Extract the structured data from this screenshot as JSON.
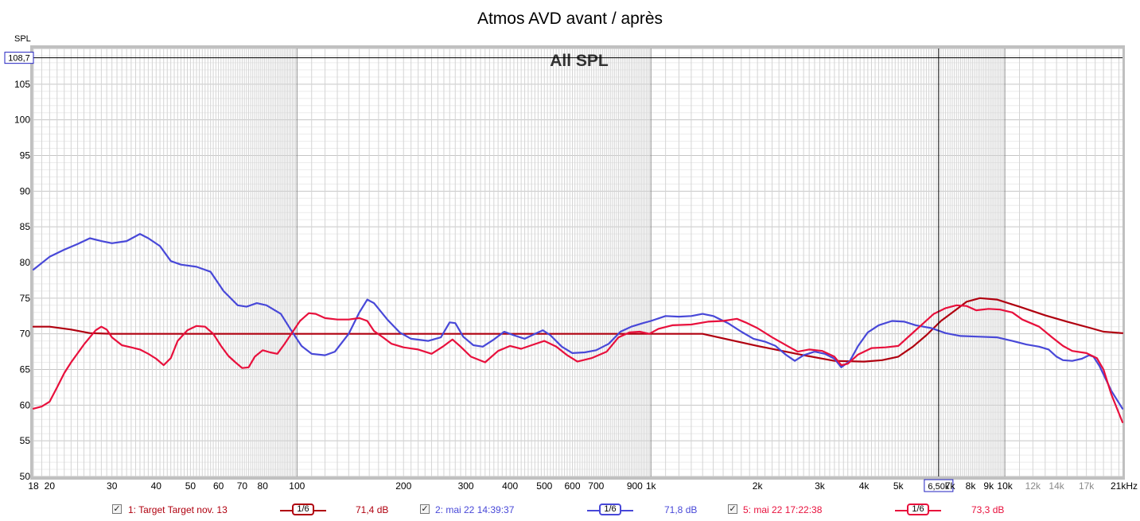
{
  "chart_data": {
    "type": "line",
    "title": "Atmos AVD avant / après",
    "watermark": "All SPL",
    "ylabel": "SPL",
    "xscale": "log",
    "xlim": [
      18,
      21500
    ],
    "ylim": [
      50,
      110
    ],
    "grid": true,
    "y_ticks": [
      50,
      55,
      60,
      65,
      70,
      75,
      80,
      85,
      90,
      95,
      100,
      105
    ],
    "x_tick_labels": [
      {
        "f": 18,
        "label": "18"
      },
      {
        "f": 20,
        "label": "20"
      },
      {
        "f": 30,
        "label": "30"
      },
      {
        "f": 40,
        "label": "40"
      },
      {
        "f": 50,
        "label": "50"
      },
      {
        "f": 60,
        "label": "60"
      },
      {
        "f": 70,
        "label": "70"
      },
      {
        "f": 80,
        "label": "80"
      },
      {
        "f": 100,
        "label": "100"
      },
      {
        "f": 200,
        "label": "200"
      },
      {
        "f": 300,
        "label": "300"
      },
      {
        "f": 400,
        "label": "400"
      },
      {
        "f": 500,
        "label": "500"
      },
      {
        "f": 600,
        "label": "600"
      },
      {
        "f": 700,
        "label": "700"
      },
      {
        "f": 900,
        "label": "900"
      },
      {
        "f": 1000,
        "label": "1k"
      },
      {
        "f": 2000,
        "label": "2k"
      },
      {
        "f": 3000,
        "label": "3k"
      },
      {
        "f": 4000,
        "label": "4k"
      },
      {
        "f": 5000,
        "label": "5k"
      },
      {
        "f": 7000,
        "label": "7k"
      },
      {
        "f": 8000,
        "label": "8k"
      },
      {
        "f": 9000,
        "label": "9k"
      },
      {
        "f": 10000,
        "label": "10k"
      },
      {
        "f": 12000,
        "label": "12k",
        "grey": true
      },
      {
        "f": 14000,
        "label": "14k",
        "grey": true
      },
      {
        "f": 17000,
        "label": "17k",
        "grey": true
      },
      {
        "f": 21000,
        "label": "21kHz"
      }
    ],
    "cursor": {
      "x": 6500,
      "x_label": "6,50k",
      "y": 108.7,
      "y_label": "108,7"
    },
    "series": [
      {
        "name": "1: Target Target nov. 13",
        "color": "#b0000f",
        "smoothing": "1/6",
        "level": "71,4 dB",
        "points": [
          [
            18,
            71
          ],
          [
            20,
            71
          ],
          [
            23,
            70.6
          ],
          [
            26,
            70.1
          ],
          [
            30,
            70
          ],
          [
            100,
            70
          ],
          [
            1000,
            70
          ],
          [
            1400,
            70
          ],
          [
            2000,
            68.3
          ],
          [
            2700,
            67
          ],
          [
            3300,
            66.2
          ],
          [
            4000,
            66.1
          ],
          [
            4500,
            66.3
          ],
          [
            5000,
            66.8
          ],
          [
            5500,
            68.2
          ],
          [
            6000,
            69.8
          ],
          [
            6600,
            71.8
          ],
          [
            7200,
            73.2
          ],
          [
            7800,
            74.5
          ],
          [
            8500,
            75
          ],
          [
            9500,
            74.8
          ],
          [
            11000,
            73.8
          ],
          [
            13000,
            72.6
          ],
          [
            15000,
            71.7
          ],
          [
            17500,
            70.8
          ],
          [
            19000,
            70.3
          ],
          [
            21500,
            70.1
          ]
        ]
      },
      {
        "name": "2: mai 22 14:39:37",
        "color": "#4848d8",
        "smoothing": "1/6",
        "level": "71,8 dB",
        "points": [
          [
            18,
            79
          ],
          [
            20,
            80.8
          ],
          [
            22,
            81.8
          ],
          [
            24,
            82.6
          ],
          [
            26,
            83.4
          ],
          [
            28,
            83
          ],
          [
            30,
            82.7
          ],
          [
            33,
            83
          ],
          [
            36,
            84
          ],
          [
            38,
            83.4
          ],
          [
            41,
            82.3
          ],
          [
            44,
            80.2
          ],
          [
            47,
            79.7
          ],
          [
            52,
            79.4
          ],
          [
            57,
            78.7
          ],
          [
            62,
            76
          ],
          [
            68,
            74
          ],
          [
            72,
            73.8
          ],
          [
            77,
            74.3
          ],
          [
            82,
            74
          ],
          [
            90,
            72.8
          ],
          [
            96,
            70.6
          ],
          [
            103,
            68.3
          ],
          [
            110,
            67.2
          ],
          [
            120,
            67
          ],
          [
            128,
            67.5
          ],
          [
            140,
            70
          ],
          [
            150,
            73
          ],
          [
            158,
            74.8
          ],
          [
            165,
            74.3
          ],
          [
            180,
            72
          ],
          [
            195,
            70.2
          ],
          [
            210,
            69.3
          ],
          [
            235,
            69
          ],
          [
            255,
            69.5
          ],
          [
            270,
            71.6
          ],
          [
            280,
            71.5
          ],
          [
            295,
            69.6
          ],
          [
            315,
            68.4
          ],
          [
            335,
            68.2
          ],
          [
            360,
            69.2
          ],
          [
            385,
            70.3
          ],
          [
            410,
            69.8
          ],
          [
            440,
            69.3
          ],
          [
            470,
            70
          ],
          [
            495,
            70.5
          ],
          [
            520,
            69.8
          ],
          [
            560,
            68.2
          ],
          [
            600,
            67.3
          ],
          [
            650,
            67.4
          ],
          [
            700,
            67.7
          ],
          [
            760,
            68.6
          ],
          [
            820,
            70.3
          ],
          [
            880,
            71
          ],
          [
            950,
            71.5
          ],
          [
            1000,
            71.8
          ],
          [
            1100,
            72.5
          ],
          [
            1200,
            72.4
          ],
          [
            1300,
            72.5
          ],
          [
            1400,
            72.8
          ],
          [
            1500,
            72.5
          ],
          [
            1650,
            71.5
          ],
          [
            1800,
            70.3
          ],
          [
            1950,
            69.3
          ],
          [
            2100,
            68.9
          ],
          [
            2250,
            68.3
          ],
          [
            2400,
            67.1
          ],
          [
            2550,
            66.2
          ],
          [
            2700,
            67
          ],
          [
            2900,
            67.5
          ],
          [
            3100,
            67.2
          ],
          [
            3300,
            66.5
          ],
          [
            3450,
            65.3
          ],
          [
            3650,
            66.2
          ],
          [
            3850,
            68.3
          ],
          [
            4100,
            70.2
          ],
          [
            4400,
            71.2
          ],
          [
            4800,
            71.8
          ],
          [
            5200,
            71.7
          ],
          [
            5600,
            71.2
          ],
          [
            6200,
            70.8
          ],
          [
            6800,
            70.1
          ],
          [
            7500,
            69.7
          ],
          [
            8500,
            69.6
          ],
          [
            9500,
            69.5
          ],
          [
            10500,
            69
          ],
          [
            11500,
            68.5
          ],
          [
            12500,
            68.2
          ],
          [
            13300,
            67.8
          ],
          [
            14000,
            66.8
          ],
          [
            14600,
            66.3
          ],
          [
            15500,
            66.2
          ],
          [
            16500,
            66.5
          ],
          [
            17300,
            67
          ],
          [
            17800,
            66.8
          ],
          [
            18500,
            65.5
          ],
          [
            20000,
            62
          ],
          [
            21500,
            59.5
          ]
        ]
      },
      {
        "name": "5: mai 22 17:22:38",
        "color": "#e8103c",
        "smoothing": "1/6",
        "level": "73,3 dB",
        "points": [
          [
            18,
            59.5
          ],
          [
            19,
            59.8
          ],
          [
            20,
            60.5
          ],
          [
            21,
            62.5
          ],
          [
            22,
            64.5
          ],
          [
            23,
            66
          ],
          [
            25,
            68.5
          ],
          [
            27,
            70.5
          ],
          [
            28,
            71
          ],
          [
            29,
            70.6
          ],
          [
            30,
            69.5
          ],
          [
            32,
            68.4
          ],
          [
            34,
            68.1
          ],
          [
            36,
            67.8
          ],
          [
            38,
            67.2
          ],
          [
            40,
            66.5
          ],
          [
            42,
            65.6
          ],
          [
            44,
            66.6
          ],
          [
            46,
            69
          ],
          [
            49,
            70.5
          ],
          [
            52,
            71.1
          ],
          [
            55,
            71
          ],
          [
            58,
            70
          ],
          [
            61,
            68.3
          ],
          [
            64,
            66.9
          ],
          [
            67,
            66
          ],
          [
            70,
            65.2
          ],
          [
            73,
            65.3
          ],
          [
            76,
            66.8
          ],
          [
            80,
            67.7
          ],
          [
            84,
            67.4
          ],
          [
            88,
            67.2
          ],
          [
            92,
            68.5
          ],
          [
            97,
            70.2
          ],
          [
            102,
            71.8
          ],
          [
            108,
            72.9
          ],
          [
            113,
            72.8
          ],
          [
            120,
            72.2
          ],
          [
            130,
            72
          ],
          [
            140,
            72
          ],
          [
            150,
            72.2
          ],
          [
            158,
            71.8
          ],
          [
            165,
            70.4
          ],
          [
            175,
            69.5
          ],
          [
            185,
            68.6
          ],
          [
            200,
            68.1
          ],
          [
            220,
            67.8
          ],
          [
            240,
            67.2
          ],
          [
            260,
            68.3
          ],
          [
            275,
            69.2
          ],
          [
            290,
            68.2
          ],
          [
            310,
            66.8
          ],
          [
            340,
            66
          ],
          [
            370,
            67.6
          ],
          [
            400,
            68.3
          ],
          [
            430,
            67.9
          ],
          [
            460,
            68.4
          ],
          [
            500,
            69
          ],
          [
            540,
            68.2
          ],
          [
            580,
            67
          ],
          [
            620,
            66.1
          ],
          [
            680,
            66.6
          ],
          [
            750,
            67.5
          ],
          [
            810,
            69.5
          ],
          [
            870,
            70.2
          ],
          [
            930,
            70.3
          ],
          [
            990,
            70
          ],
          [
            1050,
            70.7
          ],
          [
            1150,
            71.2
          ],
          [
            1300,
            71.3
          ],
          [
            1450,
            71.7
          ],
          [
            1600,
            71.8
          ],
          [
            1750,
            72.1
          ],
          [
            1850,
            71.6
          ],
          [
            2000,
            70.8
          ],
          [
            2200,
            69.5
          ],
          [
            2450,
            68.2
          ],
          [
            2600,
            67.5
          ],
          [
            2800,
            67.8
          ],
          [
            3050,
            67.6
          ],
          [
            3300,
            66.8
          ],
          [
            3450,
            65.6
          ],
          [
            3600,
            65.8
          ],
          [
            3850,
            67.1
          ],
          [
            4200,
            68
          ],
          [
            4600,
            68.1
          ],
          [
            5000,
            68.3
          ],
          [
            5400,
            69.8
          ],
          [
            5800,
            71.2
          ],
          [
            6300,
            72.8
          ],
          [
            6800,
            73.6
          ],
          [
            7300,
            74
          ],
          [
            7800,
            73.9
          ],
          [
            8300,
            73.3
          ],
          [
            9000,
            73.5
          ],
          [
            9700,
            73.4
          ],
          [
            10500,
            73
          ],
          [
            11200,
            72
          ],
          [
            12500,
            71
          ],
          [
            13600,
            69.5
          ],
          [
            14600,
            68.3
          ],
          [
            15500,
            67.6
          ],
          [
            17000,
            67.3
          ],
          [
            18200,
            66.6
          ],
          [
            19000,
            65
          ],
          [
            20000,
            61.5
          ],
          [
            21500,
            57.6
          ]
        ]
      }
    ]
  }
}
